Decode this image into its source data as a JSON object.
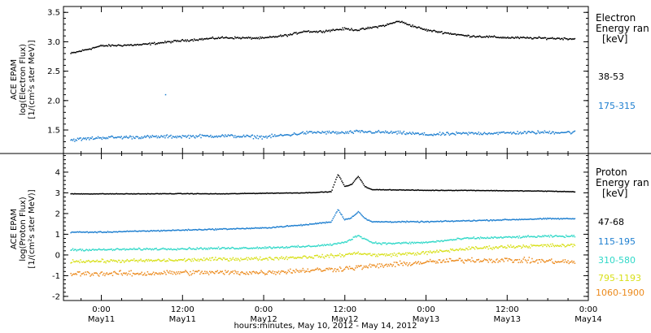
{
  "page": {
    "xlabel": "hours:minutes, May 10, 2012 - May 14, 2012"
  },
  "chart_data": [
    {
      "type": "scatter",
      "panel": "electron",
      "title": "",
      "ylabel_lines": [
        "ACE EPAM",
        "log(Electron Flux)",
        "[1/(cm²s ster MeV)]"
      ],
      "legend_title_lines": [
        "Electron",
        "Energy ran",
        "[keV]"
      ],
      "ylim": [
        1.1,
        3.6
      ],
      "yticks": [
        1.5,
        2.0,
        2.5,
        3.0,
        3.5
      ],
      "ytick_labels": [
        "1.5",
        "2.0",
        "2.5",
        "3.0",
        "3.5"
      ],
      "x_unit": "hours since 2012-05-10 00:00",
      "xlim": [
        18.4,
        96
      ],
      "series": [
        {
          "name": "38-53",
          "color": "#000000",
          "x": [
            19.5,
            24,
            30,
            36,
            42,
            48,
            52,
            54,
            56,
            60,
            62,
            66,
            68,
            70,
            72,
            78,
            84,
            90,
            94
          ],
          "y": [
            2.8,
            2.93,
            2.95,
            3.02,
            3.07,
            3.06,
            3.12,
            3.18,
            3.17,
            3.22,
            3.2,
            3.28,
            3.35,
            3.27,
            3.2,
            3.1,
            3.07,
            3.06,
            3.05
          ]
        },
        {
          "name": "175-315",
          "color": "#1e7fd0",
          "x": [
            19.5,
            24,
            30,
            36,
            42,
            48,
            52,
            54,
            56,
            60,
            62,
            66,
            68,
            70,
            72,
            78,
            84,
            90,
            94
          ],
          "y": [
            1.33,
            1.37,
            1.38,
            1.39,
            1.4,
            1.38,
            1.42,
            1.45,
            1.46,
            1.45,
            1.47,
            1.46,
            1.45,
            1.44,
            1.42,
            1.44,
            1.45,
            1.46,
            1.46
          ]
        }
      ],
      "outliers": [
        {
          "series": "175-315",
          "x": 33.5,
          "y": 2.1
        }
      ]
    },
    {
      "type": "scatter",
      "panel": "proton",
      "title": "",
      "ylabel_lines": [
        "ACE EPAM",
        "log(Proton Flux)",
        "[1/(cm²s ster MeV)]"
      ],
      "legend_title_lines": [
        "Proton",
        "Energy ran",
        "[keV]"
      ],
      "ylim": [
        -2.2,
        4.9
      ],
      "yticks": [
        -2,
        -1,
        0,
        1,
        2,
        3,
        4
      ],
      "ytick_labels": [
        "-2",
        "-1",
        "0",
        "1",
        "2",
        "3",
        "4"
      ],
      "x_unit": "hours since 2012-05-10 00:00",
      "xlim": [
        18.4,
        96
      ],
      "xticks": [
        24,
        36,
        48,
        60,
        72,
        84,
        96
      ],
      "xtick_labels": [
        "0:00",
        "12:00",
        "0:00",
        "12:00",
        "0:00",
        "12:00",
        "0:00"
      ],
      "xtick_dates": [
        "May11",
        "May11",
        "May12",
        "May12",
        "May13",
        "May13",
        "May14"
      ],
      "series": [
        {
          "name": "47-68",
          "color": "#000000",
          "x": [
            19.5,
            24,
            30,
            36,
            42,
            48,
            54,
            58,
            59,
            60,
            61,
            62,
            63,
            64,
            66,
            72,
            78,
            84,
            90,
            94
          ],
          "y": [
            2.95,
            2.95,
            2.95,
            2.96,
            2.95,
            2.98,
            3.0,
            3.05,
            3.9,
            3.3,
            3.4,
            3.8,
            3.3,
            3.15,
            3.15,
            3.12,
            3.12,
            3.1,
            3.08,
            3.05
          ]
        },
        {
          "name": "115-195",
          "color": "#1e7fd0",
          "x": [
            19.5,
            24,
            30,
            36,
            42,
            48,
            54,
            58,
            59,
            60,
            61,
            62,
            63,
            64,
            66,
            72,
            78,
            84,
            90,
            94
          ],
          "y": [
            1.1,
            1.1,
            1.15,
            1.2,
            1.25,
            1.3,
            1.45,
            1.6,
            2.2,
            1.7,
            1.8,
            2.1,
            1.75,
            1.6,
            1.6,
            1.6,
            1.65,
            1.7,
            1.75,
            1.75
          ]
        },
        {
          "name": "310-580",
          "color": "#30d8c8",
          "x": [
            19.5,
            24,
            30,
            36,
            42,
            48,
            54,
            58,
            60,
            62,
            64,
            66,
            72,
            78,
            84,
            90,
            94
          ],
          "y": [
            0.25,
            0.25,
            0.28,
            0.3,
            0.32,
            0.35,
            0.4,
            0.5,
            0.6,
            0.95,
            0.6,
            0.55,
            0.6,
            0.8,
            0.85,
            0.9,
            0.9
          ]
        },
        {
          "name": "795-1193",
          "color": "#d8e01a",
          "x": [
            19.5,
            24,
            30,
            36,
            42,
            48,
            54,
            58,
            60,
            62,
            64,
            66,
            72,
            78,
            84,
            90,
            94
          ],
          "y": [
            -0.3,
            -0.3,
            -0.28,
            -0.25,
            -0.2,
            -0.18,
            -0.1,
            -0.05,
            0.0,
            0.1,
            0.0,
            0.0,
            0.1,
            0.3,
            0.4,
            0.45,
            0.45
          ]
        },
        {
          "name": "1060-1900",
          "color": "#ec8a1c",
          "x": [
            19.5,
            24,
            30,
            36,
            42,
            48,
            54,
            58,
            60,
            62,
            64,
            66,
            72,
            78,
            84,
            90,
            94
          ],
          "y": [
            -0.9,
            -0.9,
            -0.9,
            -0.85,
            -0.85,
            -0.85,
            -0.75,
            -0.7,
            -0.65,
            -0.6,
            -0.55,
            -0.5,
            -0.35,
            -0.25,
            -0.25,
            -0.3,
            -0.35
          ]
        }
      ]
    }
  ]
}
